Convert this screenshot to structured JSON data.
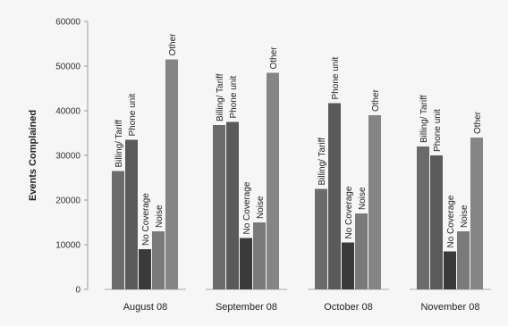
{
  "chart_data": {
    "type": "bar",
    "title": "",
    "xlabel": "",
    "ylabel": "Events Complained",
    "ylim": [
      0,
      60000
    ],
    "yticks": [
      0,
      10000,
      20000,
      30000,
      40000,
      50000,
      60000
    ],
    "grid": false,
    "legend": "none",
    "categories": [
      "August 08",
      "September 08",
      "October 08",
      "November 08"
    ],
    "series": [
      {
        "name": "Billing/ Tariff",
        "color": "#6b6b6b",
        "values": [
          26500,
          36800,
          22500,
          32000
        ]
      },
      {
        "name": "Phone unit",
        "color": "#5a5a5a",
        "values": [
          33500,
          37500,
          41700,
          30000
        ]
      },
      {
        "name": "No Coverage",
        "color": "#3a3a3a",
        "values": [
          9000,
          11500,
          10500,
          8500
        ]
      },
      {
        "name": "Noise",
        "color": "#7a7a7a",
        "values": [
          13000,
          15000,
          17000,
          13000
        ]
      },
      {
        "name": "Other",
        "color": "#858585",
        "values": [
          51500,
          48500,
          39000,
          34000
        ]
      }
    ]
  }
}
